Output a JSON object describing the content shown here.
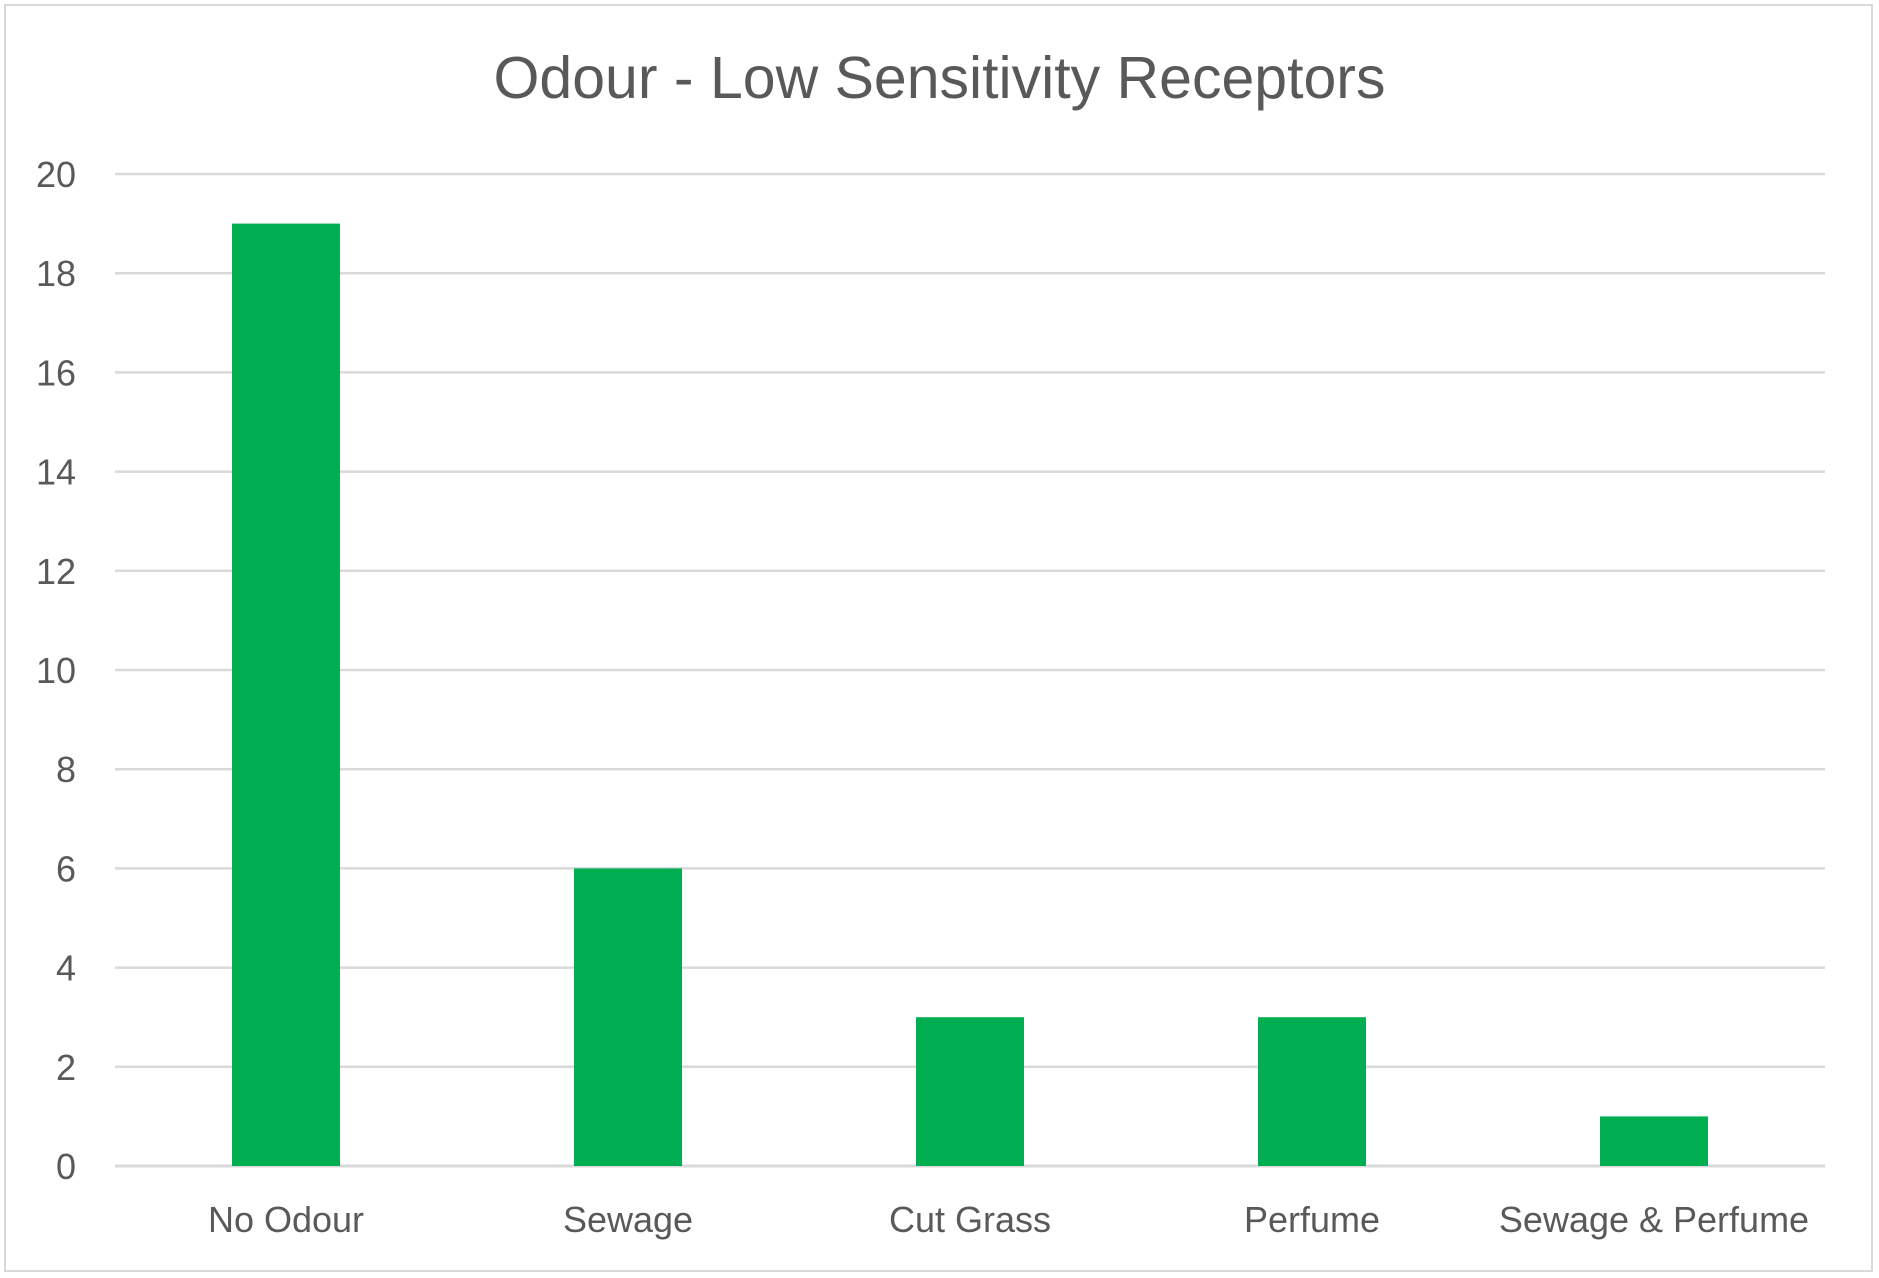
{
  "chart_data": {
    "type": "bar",
    "title": "Odour - Low Sensitivity Receptors",
    "categories": [
      "No Odour",
      "Sewage",
      "Cut Grass",
      "Perfume",
      "Sewage & Perfume"
    ],
    "values": [
      19,
      6,
      3,
      3,
      1
    ],
    "xlabel": "",
    "ylabel": "",
    "ylim": [
      0,
      20
    ],
    "yticks": [
      "0",
      "2",
      "4",
      "6",
      "8",
      "10",
      "12",
      "14",
      "16",
      "18",
      "20"
    ],
    "grid": true,
    "legend": "none",
    "colors": {
      "bar": "#00AD50",
      "gridline": "#D9D9D9",
      "text": "#595959",
      "border": "#D9D9D9"
    }
  }
}
